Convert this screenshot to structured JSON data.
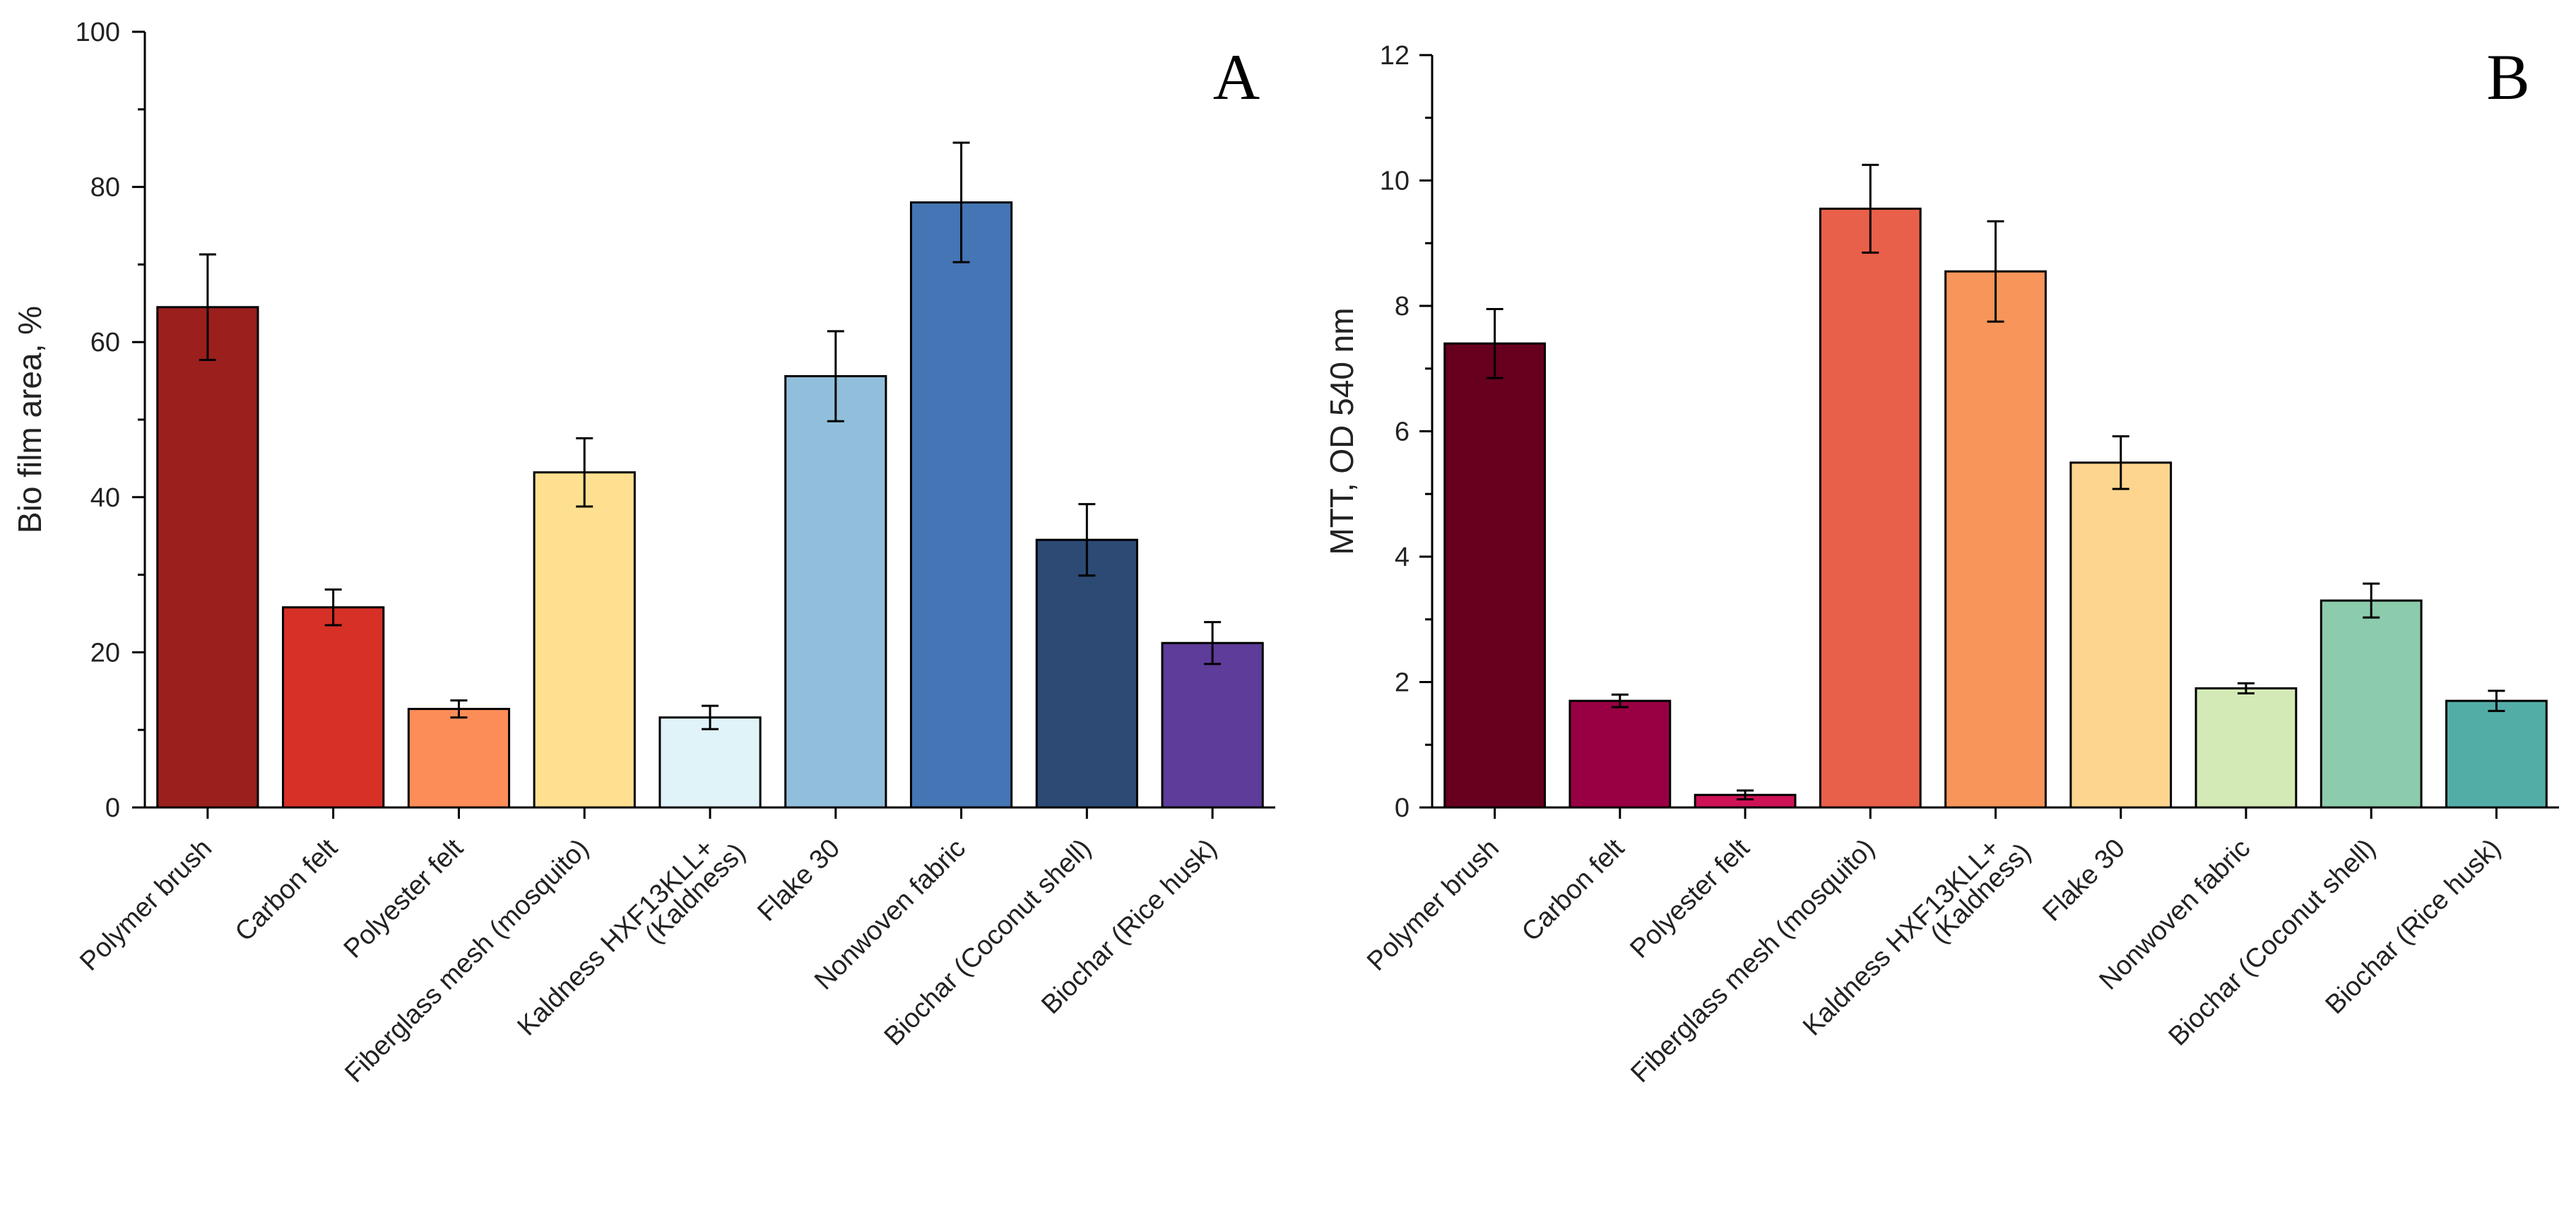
{
  "chart_data": [
    {
      "type": "bar",
      "panel_label": "A",
      "title": "",
      "xlabel": "",
      "ylabel": "Bio film area, %",
      "ylim": [
        0,
        100
      ],
      "yticks": [
        0,
        20,
        40,
        60,
        80,
        100
      ],
      "categories": [
        [
          "Polymer brush"
        ],
        [
          "Carbon felt"
        ],
        [
          "Polyester felt"
        ],
        [
          "Fiberglass mesh (mosquito)"
        ],
        [
          "Kaldness HXF13KLL+",
          "(Kaldness)"
        ],
        [
          "Flake 30"
        ],
        [
          "Nonwoven fabric"
        ],
        [
          "Biochar (Coconut shell)"
        ],
        [
          "Biochar (Rice husk)"
        ]
      ],
      "values": [
        64.5,
        25.8,
        12.7,
        43.2,
        11.6,
        55.6,
        78.0,
        34.5,
        21.2
      ],
      "errors": [
        6.8,
        2.3,
        1.1,
        4.4,
        1.5,
        5.8,
        7.7,
        4.6,
        2.7
      ],
      "colors": [
        "#9b1f1c",
        "#d73027",
        "#fc8d59",
        "#fee090",
        "#e0f3f8",
        "#91bfdb",
        "#4575b4",
        "#2c4a74",
        "#5e3c99"
      ]
    },
    {
      "type": "bar",
      "panel_label": "B",
      "title": "",
      "xlabel": "",
      "ylabel": "MTT, OD 540 nm",
      "ylim": [
        0,
        12
      ],
      "yticks": [
        0,
        2,
        4,
        6,
        8,
        10,
        12
      ],
      "categories": [
        [
          "Polymer brush"
        ],
        [
          "Carbon felt"
        ],
        [
          "Polyester felt"
        ],
        [
          "Fiberglass mesh (mosquito)"
        ],
        [
          "Kaldness HXF13KLL+",
          "(Kaldness)"
        ],
        [
          "Flake 30"
        ],
        [
          "Nonwoven fabric"
        ],
        [
          "Biochar (Coconut shell)"
        ],
        [
          "Biochar (Rice husk)"
        ]
      ],
      "values": [
        7.4,
        1.7,
        0.2,
        9.55,
        8.55,
        5.5,
        1.9,
        3.3,
        1.7
      ],
      "errors": [
        0.55,
        0.1,
        0.07,
        0.7,
        0.8,
        0.42,
        0.08,
        0.27,
        0.16
      ],
      "colors": [
        "#67001f",
        "#980043",
        "#ce1256",
        "#e9604a",
        "#f7955a",
        "#fdd58f",
        "#d4eab6",
        "#8ccbac",
        "#53ada7"
      ]
    }
  ]
}
